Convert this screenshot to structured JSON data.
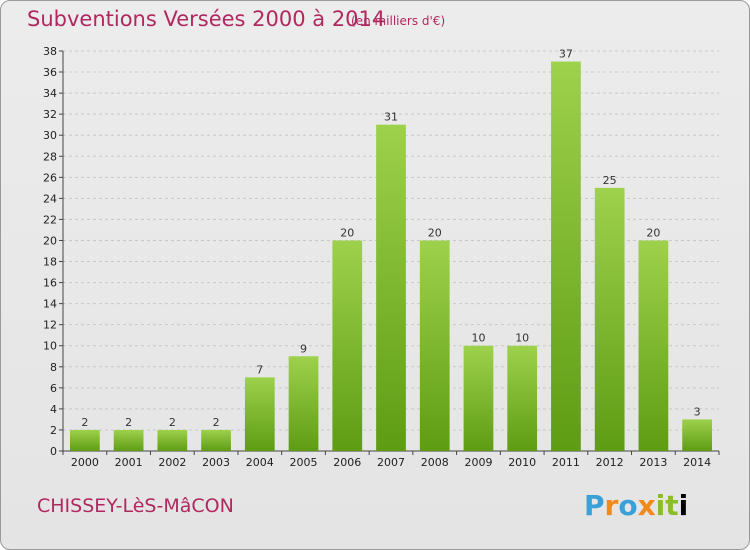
{
  "header": {
    "title": "Subventions Versées 2000 à 2014",
    "unit": "(en milliers d'€)"
  },
  "footer": {
    "commune": "CHISSEY-LèS-MâCON",
    "logo_letters": [
      "P",
      "r",
      "o",
      "x",
      "i",
      "t",
      "i"
    ]
  },
  "colors": {
    "bar_top": "#9ed14c",
    "bar_bottom": "#5e9c14",
    "title": "#b0285f",
    "grid": "#c8c8c8"
  },
  "chart_data": {
    "type": "bar",
    "title": "Subventions Versées 2000 à 2014",
    "ylabel": "",
    "xlabel": "",
    "ylim": [
      0,
      38
    ],
    "ytick_step": 2,
    "grid": true,
    "categories": [
      "2000",
      "2001",
      "2002",
      "2003",
      "2004",
      "2005",
      "2006",
      "2007",
      "2008",
      "2009",
      "2010",
      "2011",
      "2012",
      "2013",
      "2014"
    ],
    "values": [
      2,
      2,
      2,
      2,
      7,
      9,
      20,
      31,
      20,
      10,
      10,
      37,
      25,
      20,
      3
    ]
  }
}
